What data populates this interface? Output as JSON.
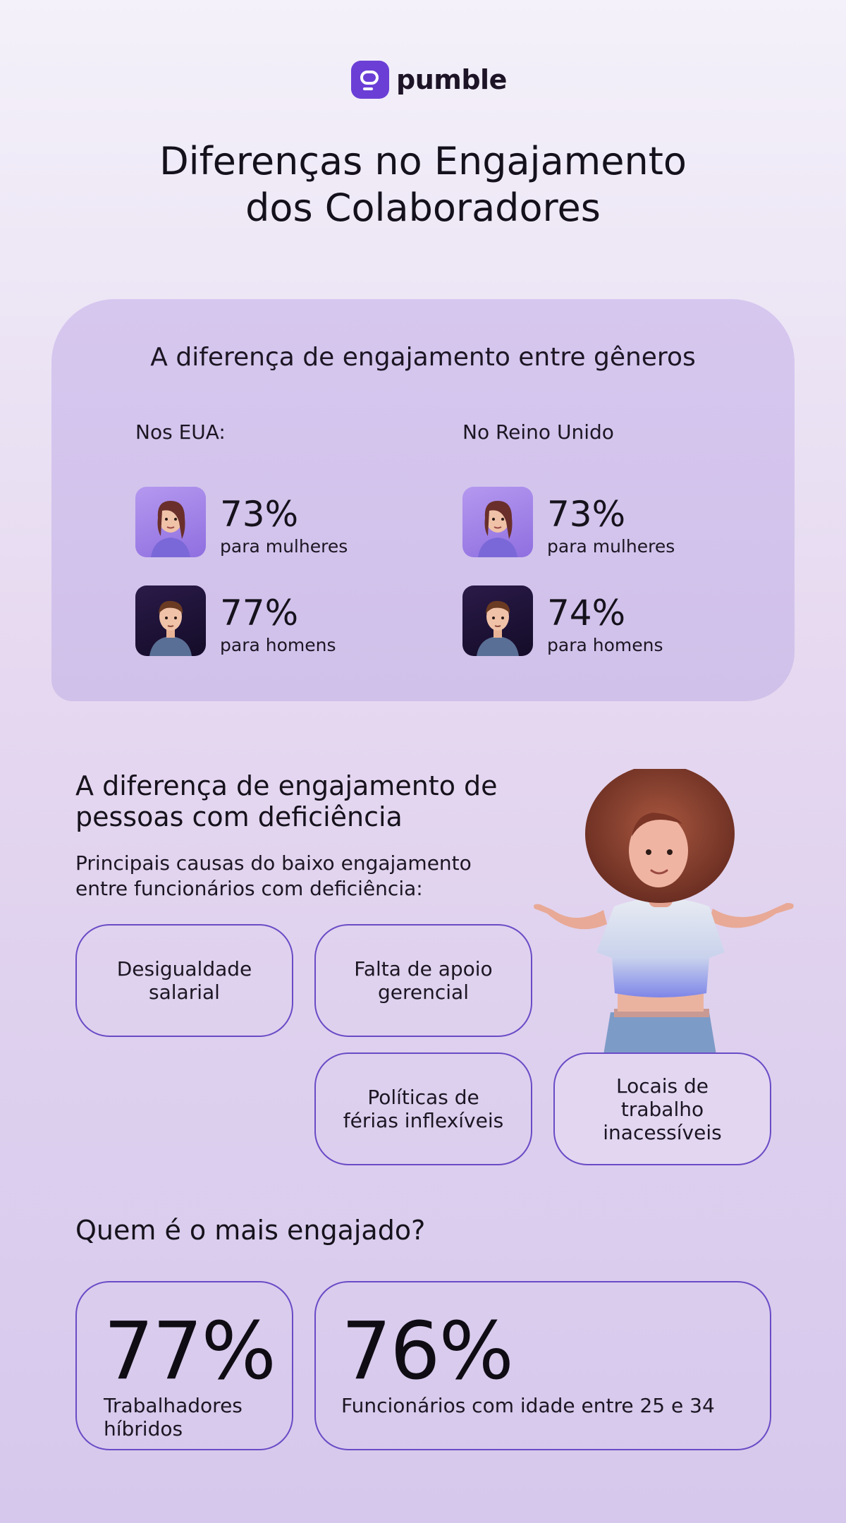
{
  "brand": {
    "name": "pumble",
    "logo_icon": "chat-bubble-icon",
    "accent": "#6b3fd6"
  },
  "title": {
    "line1": "Diferenças no Engajamento",
    "line2": "dos Colaboradores"
  },
  "gender_gap": {
    "heading": "A diferença de engajamento entre gêneros",
    "regions": [
      {
        "label": "Nos EUA:",
        "women_pct": "73%",
        "women_label": "para mulheres",
        "men_pct": "77%",
        "men_label": "para homens"
      },
      {
        "label": "No Reino Unido",
        "women_pct": "73%",
        "women_label": "para mulheres",
        "men_pct": "74%",
        "men_label": "para homens"
      }
    ]
  },
  "disability_gap": {
    "heading_line1": "A diferença de engajamento de",
    "heading_line2": "pessoas com deficiência",
    "intro_line1": "Principais causas do baixo engajamento",
    "intro_line2": "entre funcionários com deficiência:",
    "causes": [
      {
        "line1": "Desigualdade",
        "line2": "salarial"
      },
      {
        "line1": "Falta de apoio",
        "line2": "gerencial"
      },
      {
        "line1": "Políticas de",
        "line2": "férias inflexíveis"
      },
      {
        "line1": "Locais de",
        "line2": "trabalho",
        "line3": "inacessíveis"
      }
    ]
  },
  "most_engaged": {
    "heading": "Quem é o mais engajado?",
    "stats": [
      {
        "value": "77%",
        "label_line1": "Trabalhadores",
        "label_line2": "híbridos"
      },
      {
        "value": "76%",
        "label_line1": "Funcionários com idade entre 25 e 34"
      }
    ]
  }
}
